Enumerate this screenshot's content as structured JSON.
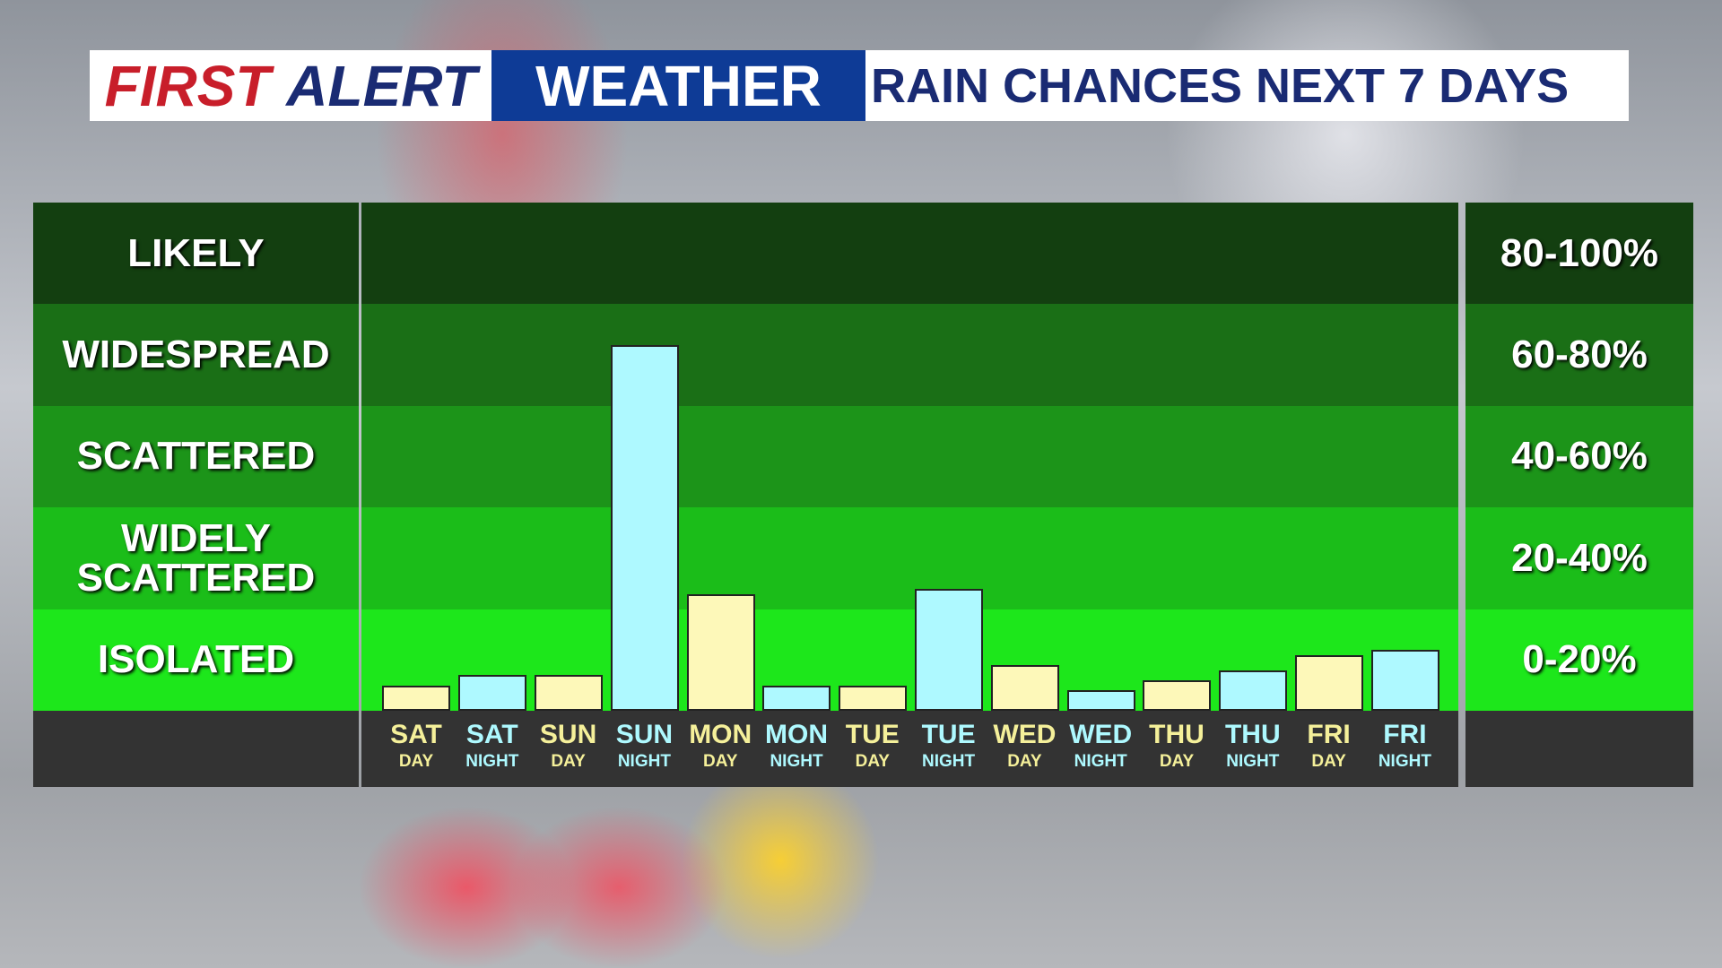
{
  "header": {
    "brand_first": "FIRST",
    "brand_alert": "ALERT",
    "brand_weather": "WEATHER"
  },
  "chart_data": {
    "type": "bar",
    "title": "RAIN CHANCES NEXT 7 DAYS",
    "categories": [
      {
        "day": "SAT",
        "period": "DAY"
      },
      {
        "day": "SAT",
        "period": "NIGHT"
      },
      {
        "day": "SUN",
        "period": "DAY"
      },
      {
        "day": "SUN",
        "period": "NIGHT"
      },
      {
        "day": "MON",
        "period": "DAY"
      },
      {
        "day": "MON",
        "period": "NIGHT"
      },
      {
        "day": "TUE",
        "period": "DAY"
      },
      {
        "day": "TUE",
        "period": "NIGHT"
      },
      {
        "day": "WED",
        "period": "DAY"
      },
      {
        "day": "WED",
        "period": "NIGHT"
      },
      {
        "day": "THU",
        "period": "DAY"
      },
      {
        "day": "THU",
        "period": "NIGHT"
      },
      {
        "day": "FRI",
        "period": "DAY"
      },
      {
        "day": "FRI",
        "period": "NIGHT"
      }
    ],
    "values": [
      5,
      7,
      7,
      72,
      23,
      5,
      5,
      24,
      9,
      4,
      6,
      8,
      11,
      12
    ],
    "colors": [
      "#fdf8b9",
      "#aef9ff",
      "#fdf8b9",
      "#aef9ff",
      "#fdf8b9",
      "#aef9ff",
      "#fdf8b9",
      "#aef9ff",
      "#fdf8b9",
      "#aef9ff",
      "#fdf8b9",
      "#aef9ff",
      "#fdf8b9",
      "#aef9ff"
    ],
    "ylim": [
      0,
      100
    ],
    "bands": [
      {
        "label": "LIKELY",
        "range": "80-100%",
        "from": 80,
        "to": 100,
        "color": "#133f10"
      },
      {
        "label": "WIDESPREAD",
        "range": "60-80%",
        "from": 60,
        "to": 80,
        "color": "#1a6f16"
      },
      {
        "label": "SCATTERED",
        "range": "40-60%",
        "from": 40,
        "to": 60,
        "color": "#1c9419"
      },
      {
        "label": "WIDELY SCATTERED",
        "range": "20-40%",
        "from": 20,
        "to": 40,
        "color": "#1bbd19"
      },
      {
        "label": "ISOLATED",
        "range": "0-20%",
        "from": 0,
        "to": 20,
        "color": "#1de71b"
      }
    ]
  }
}
